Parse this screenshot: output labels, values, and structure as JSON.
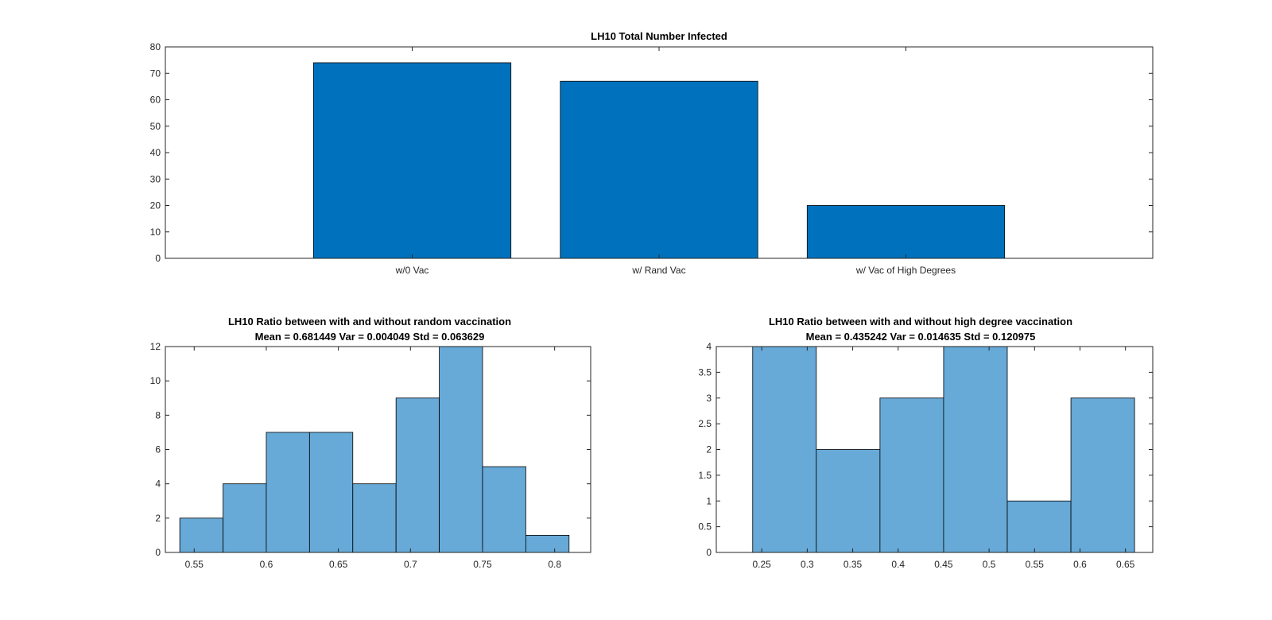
{
  "colors": {
    "bar_dark": "#0072BD",
    "hist": "#67A9D7",
    "axis": "#262626",
    "background": "#FFFFFF"
  },
  "chart_data": [
    {
      "type": "bar",
      "title": "LH10 Total Number Infected",
      "categories": [
        "w/0 Vac",
        "w/ Rand Vac",
        "w/ Vac of High Degrees"
      ],
      "values": [
        74,
        67,
        20
      ],
      "xlim": [
        0,
        4
      ],
      "ylim": [
        0,
        80
      ],
      "yticks": [
        0,
        10,
        20,
        30,
        40,
        50,
        60,
        70,
        80
      ],
      "xlabel": "",
      "ylabel": "",
      "grid": false
    },
    {
      "type": "bar",
      "subtype": "histogram",
      "title": "LH10 Ratio between with and without random vaccination",
      "subtitle": "Mean = 0.681449 Var = 0.004049 Std = 0.063629",
      "bin_edges": [
        0.54,
        0.57,
        0.6,
        0.63,
        0.66,
        0.69,
        0.72,
        0.75,
        0.78,
        0.81
      ],
      "values": [
        2,
        4,
        7,
        7,
        4,
        9,
        12,
        5,
        1
      ],
      "xlim": [
        0.53,
        0.825
      ],
      "ylim": [
        0,
        12
      ],
      "xticks": [
        0.55,
        0.6,
        0.65,
        0.7,
        0.75,
        0.8
      ],
      "xtick_labels": [
        "0.55",
        "0.6",
        "0.65",
        "0.7",
        "0.75",
        "0.8"
      ],
      "yticks": [
        0,
        2,
        4,
        6,
        8,
        10,
        12
      ],
      "xlabel": "",
      "ylabel": "",
      "grid": false
    },
    {
      "type": "bar",
      "subtype": "histogram",
      "title": "LH10 Ratio between with and without high degree vaccination",
      "subtitle": "Mean = 0.435242 Var = 0.014635 Std = 0.120975",
      "bin_edges": [
        0.24,
        0.31,
        0.38,
        0.45,
        0.52,
        0.59,
        0.66
      ],
      "values": [
        4,
        2,
        3,
        4,
        1,
        3
      ],
      "xlim": [
        0.2,
        0.68
      ],
      "ylim": [
        0,
        4
      ],
      "xticks": [
        0.25,
        0.3,
        0.35,
        0.4,
        0.45,
        0.5,
        0.55,
        0.6,
        0.65
      ],
      "xtick_labels": [
        "0.25",
        "0.3",
        "0.35",
        "0.4",
        "0.45",
        "0.5",
        "0.55",
        "0.6",
        "0.65"
      ],
      "yticks": [
        0,
        0.5,
        1,
        1.5,
        2,
        2.5,
        3,
        3.5,
        4
      ],
      "ytick_labels": [
        "0",
        "0.5",
        "1",
        "1.5",
        "2",
        "2.5",
        "3",
        "3.5",
        "4"
      ],
      "xlabel": "",
      "ylabel": "",
      "grid": false
    }
  ]
}
